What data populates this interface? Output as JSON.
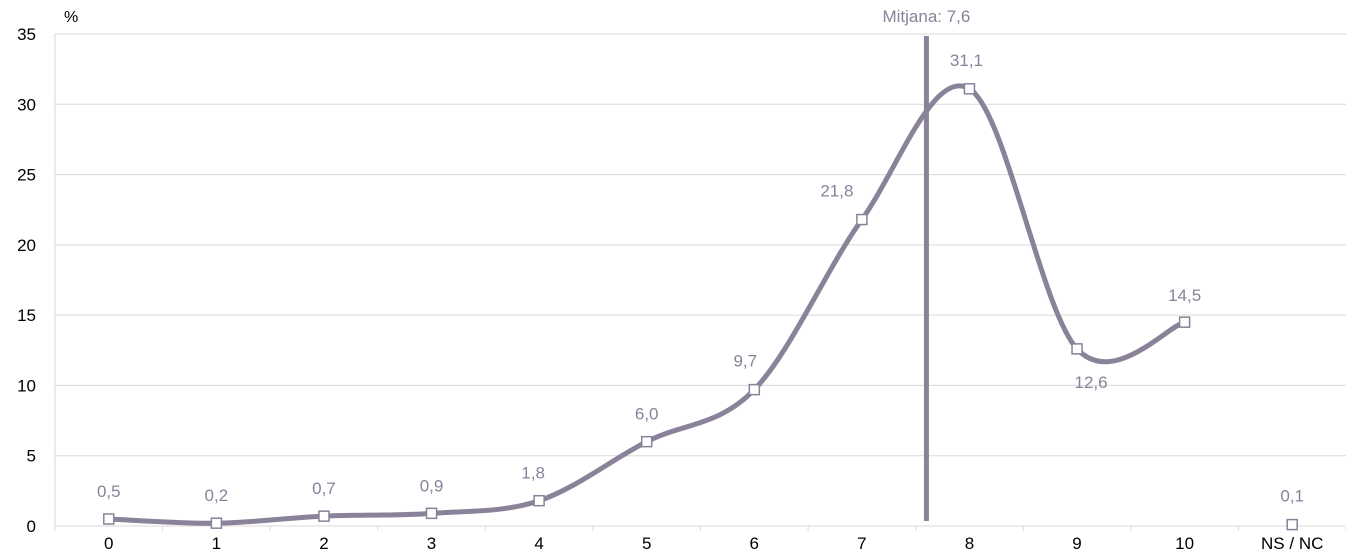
{
  "chart_data": {
    "type": "line",
    "ylabel": "%",
    "ylim": [
      0,
      35
    ],
    "yticks": [
      "0",
      "5",
      "10",
      "15",
      "20",
      "25",
      "30",
      "35"
    ],
    "categories": [
      "0",
      "1",
      "2",
      "3",
      "4",
      "5",
      "6",
      "7",
      "8",
      "9",
      "10",
      "NS / NC"
    ],
    "series": [
      {
        "values": [
          0.5,
          0.2,
          0.7,
          0.9,
          1.8,
          6.0,
          9.7,
          21.8,
          31.1,
          12.6,
          14.5,
          0.1
        ],
        "labels": [
          "0,5",
          "0,2",
          "0,7",
          "0,9",
          "1,8",
          "6,0",
          "9,7",
          "21,8",
          "31,1",
          "12,6",
          "14,5",
          "0,1"
        ],
        "color": "#8a8299"
      }
    ],
    "annotation": {
      "label": "Mitjana: 7,6",
      "x": 7.6
    },
    "grid": true,
    "line_color": "#8a8299",
    "grid_color": "#d9d9d9"
  }
}
